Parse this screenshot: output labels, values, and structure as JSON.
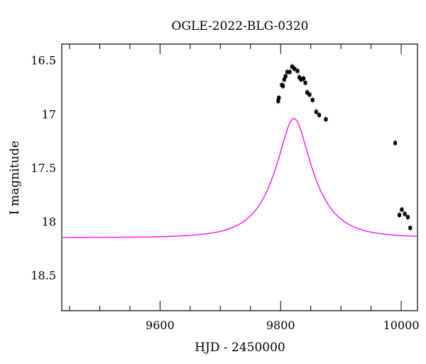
{
  "chart_data": {
    "type": "scatter",
    "title": "OGLE-2022-BLG-0320",
    "xlabel": "HJD - 2450000",
    "ylabel": "I magnitude",
    "xlim": [
      9437,
      10027
    ],
    "ylim": [
      18.83,
      16.35
    ],
    "y_inverted": true,
    "grid": false,
    "legend": "none",
    "x_ticks": [
      9600,
      9800,
      10000
    ],
    "x_tick_labels": [
      "9600",
      "9800",
      "10000"
    ],
    "y_ticks": [
      16.5,
      17,
      17.5,
      18,
      18.5
    ],
    "y_tick_labels": [
      "16.5",
      "17",
      "17.5",
      "18",
      "18.5"
    ],
    "model": {
      "color": "#ff00ff",
      "t0": 9822,
      "tE": 60,
      "u0": 0.38,
      "baseline_mag": 18.15,
      "blend_fraction": 1.0
    },
    "points": {
      "color": "#000000",
      "x": [
        9796,
        9797,
        9802,
        9804,
        9806,
        9808,
        9811,
        9815,
        9819,
        9823,
        9828,
        9831,
        9834,
        9838,
        9841,
        9844,
        9848,
        9853,
        9859,
        9864,
        9875,
        9990,
        9997,
        10001,
        10006,
        10011,
        10015
      ],
      "y": [
        16.88,
        16.85,
        16.73,
        16.74,
        16.68,
        16.65,
        16.61,
        16.61,
        16.56,
        16.58,
        16.6,
        16.66,
        16.68,
        16.67,
        16.71,
        16.8,
        16.82,
        16.87,
        16.98,
        17.01,
        17.05,
        17.27,
        17.94,
        17.89,
        17.93,
        17.96,
        18.06
      ]
    }
  }
}
